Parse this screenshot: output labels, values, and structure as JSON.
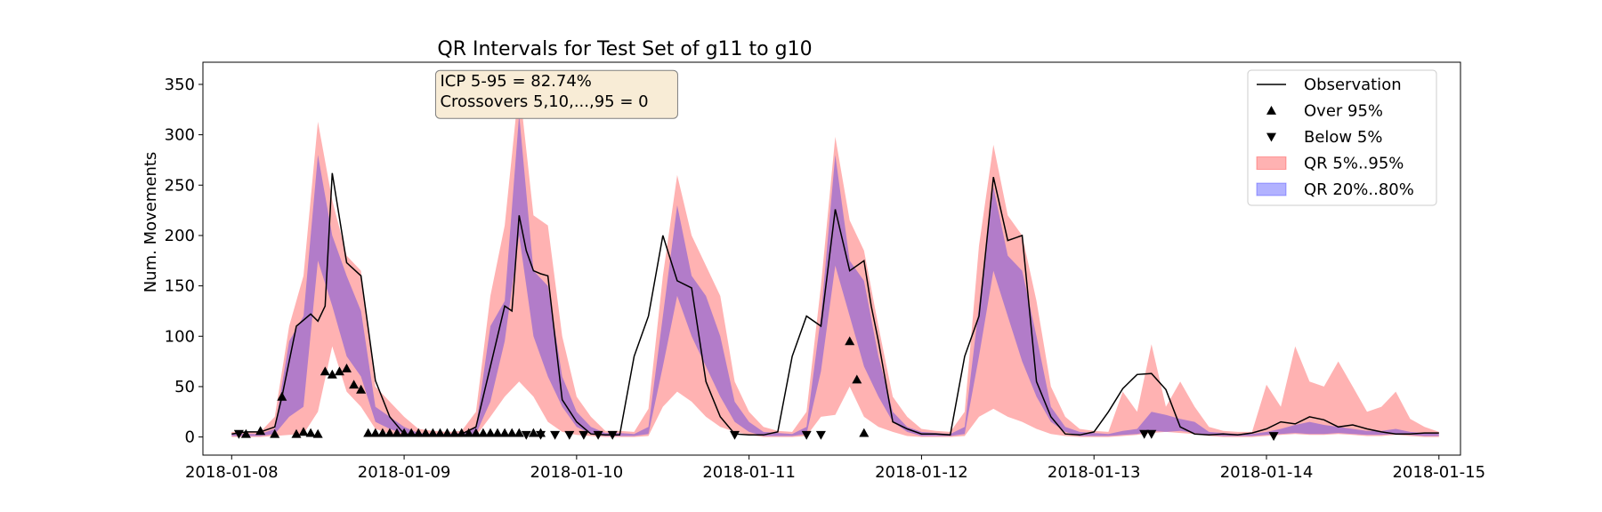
{
  "chart_data": {
    "type": "area",
    "title": "QR Intervals for Test Set of g11 to g10",
    "xlabel": "",
    "ylabel": "Num. Movements",
    "x_start": "2018-01-08",
    "x_end": "2018-01-15",
    "xlim": [
      "2018-01-07T20:00",
      "2018-01-15T03:00"
    ],
    "ylim": [
      -18,
      372
    ],
    "xticks": [
      "2018-01-08",
      "2018-01-09",
      "2018-01-10",
      "2018-01-11",
      "2018-01-12",
      "2018-01-13",
      "2018-01-14",
      "2018-01-15"
    ],
    "yticks": [
      0,
      50,
      100,
      150,
      200,
      250,
      300,
      350
    ],
    "grid": false,
    "legend_position": "top-right",
    "legend": [
      {
        "label": "Observation",
        "kind": "line",
        "color": "#000000"
      },
      {
        "label": "Over 95%",
        "kind": "marker-up",
        "color": "#000000"
      },
      {
        "label": "Below 5%",
        "kind": "marker-down",
        "color": "#000000"
      },
      {
        "label": "QR 5%..95%",
        "kind": "patch",
        "color": "#ff0000",
        "alpha": 0.3
      },
      {
        "label": "QR 20%..80%",
        "kind": "patch",
        "color": "#0000ff",
        "alpha": 0.3
      }
    ],
    "annotation": {
      "lines": [
        "ICP 5-95 = 82.74%",
        "Crossovers 5,10,...,95 = 0"
      ],
      "x_hours": 29,
      "y": 348,
      "face_color": "#f8ecd6",
      "edge_color": "#7f7f7f"
    },
    "series": {
      "band_5_95": {
        "x_hours": [
          0,
          4,
          6,
          8,
          10,
          12,
          14,
          16,
          18,
          20,
          22,
          24,
          26,
          28,
          30,
          32,
          34,
          36,
          38,
          40,
          42,
          44,
          46,
          48,
          50,
          52,
          54,
          56,
          58,
          60,
          62,
          64,
          66,
          68,
          70,
          72,
          74,
          76,
          78,
          80,
          82,
          84,
          86,
          88,
          90,
          92,
          94,
          96,
          98,
          100,
          102,
          104,
          106,
          108,
          110,
          112,
          114,
          116,
          118,
          120,
          122,
          124,
          126,
          128,
          130,
          132,
          134,
          136,
          138,
          140,
          142,
          144,
          146,
          148,
          150,
          152,
          154,
          156,
          158,
          160,
          162,
          164,
          166,
          168
        ],
        "upper": [
          5,
          5,
          20,
          110,
          160,
          313,
          235,
          180,
          165,
          50,
          35,
          20,
          8,
          6,
          5,
          6,
          25,
          140,
          210,
          350,
          220,
          210,
          100,
          40,
          20,
          6,
          6,
          5,
          28,
          160,
          260,
          200,
          170,
          140,
          55,
          25,
          10,
          6,
          5,
          25,
          150,
          298,
          215,
          185,
          110,
          40,
          20,
          8,
          6,
          5,
          25,
          190,
          290,
          220,
          200,
          135,
          50,
          20,
          8,
          6,
          5,
          45,
          25,
          92,
          30,
          55,
          30,
          10,
          6,
          5,
          5,
          52,
          30,
          90,
          55,
          50,
          75,
          50,
          25,
          30,
          45,
          18,
          10,
          5
        ],
        "lower": [
          0,
          0,
          1,
          2,
          3,
          25,
          90,
          45,
          30,
          8,
          3,
          1,
          0,
          0,
          0,
          0,
          1,
          20,
          40,
          55,
          40,
          15,
          5,
          2,
          1,
          0,
          0,
          0,
          1,
          30,
          45,
          35,
          20,
          10,
          5,
          2,
          0,
          0,
          0,
          1,
          20,
          22,
          50,
          20,
          10,
          5,
          1,
          0,
          0,
          0,
          1,
          20,
          28,
          20,
          15,
          8,
          3,
          1,
          0,
          0,
          0,
          1,
          2,
          4,
          5,
          4,
          3,
          1,
          0,
          0,
          0,
          1,
          2,
          3,
          2,
          2,
          3,
          2,
          1,
          1,
          2,
          1,
          0,
          0
        ]
      },
      "band_20_80": {
        "x_hours": [
          0,
          4,
          6,
          8,
          10,
          12,
          14,
          16,
          18,
          20,
          22,
          24,
          26,
          28,
          30,
          32,
          34,
          36,
          38,
          40,
          42,
          44,
          46,
          48,
          50,
          52,
          54,
          56,
          58,
          60,
          62,
          64,
          66,
          68,
          70,
          72,
          74,
          76,
          78,
          80,
          82,
          84,
          86,
          88,
          90,
          92,
          94,
          96,
          98,
          100,
          102,
          104,
          106,
          108,
          110,
          112,
          114,
          116,
          118,
          120,
          122,
          124,
          126,
          128,
          130,
          132,
          134,
          136,
          138,
          140,
          142,
          144,
          146,
          148,
          150,
          152,
          154,
          156,
          158,
          160,
          162,
          164,
          166,
          168
        ],
        "upper": [
          3,
          3,
          8,
          95,
          120,
          280,
          200,
          160,
          125,
          30,
          20,
          10,
          4,
          3,
          3,
          4,
          10,
          110,
          135,
          320,
          165,
          150,
          60,
          25,
          10,
          4,
          4,
          3,
          10,
          120,
          230,
          160,
          140,
          100,
          35,
          15,
          5,
          4,
          3,
          10,
          120,
          280,
          175,
          155,
          80,
          25,
          10,
          5,
          4,
          3,
          10,
          130,
          248,
          180,
          165,
          100,
          30,
          10,
          5,
          4,
          3,
          6,
          8,
          25,
          22,
          18,
          15,
          5,
          4,
          3,
          3,
          5,
          8,
          12,
          15,
          12,
          10,
          8,
          6,
          6,
          8,
          5,
          4,
          3
        ],
        "lower": [
          1,
          1,
          3,
          20,
          30,
          175,
          130,
          80,
          60,
          15,
          8,
          3,
          1,
          1,
          1,
          1,
          3,
          35,
          95,
          200,
          100,
          60,
          30,
          10,
          3,
          1,
          1,
          1,
          3,
          70,
          140,
          100,
          70,
          40,
          15,
          5,
          1,
          1,
          1,
          3,
          65,
          170,
          120,
          70,
          40,
          15,
          5,
          1,
          1,
          1,
          3,
          80,
          165,
          120,
          75,
          40,
          15,
          5,
          1,
          1,
          1,
          2,
          3,
          6,
          5,
          6,
          4,
          2,
          1,
          1,
          1,
          2,
          3,
          4,
          3,
          3,
          4,
          3,
          2,
          2,
          3,
          2,
          1,
          1
        ]
      },
      "observation": {
        "x_hours": [
          0,
          2,
          4,
          6,
          7,
          9,
          11,
          12,
          13,
          14,
          16,
          18,
          20,
          22,
          24,
          26,
          28,
          30,
          32,
          34,
          36,
          38,
          39,
          40,
          41,
          42,
          43,
          44,
          46,
          48,
          50,
          52,
          54,
          56,
          58,
          60,
          62,
          64,
          66,
          68,
          70,
          72,
          74,
          76,
          78,
          80,
          82,
          84,
          86,
          88,
          89,
          90,
          92,
          94,
          96,
          98,
          100,
          102,
          104,
          106,
          108,
          110,
          112,
          114,
          116,
          118,
          120,
          122,
          124,
          126,
          128,
          130,
          132,
          134,
          136,
          138,
          140,
          142,
          144,
          146,
          148,
          150,
          152,
          154,
          156,
          158,
          160,
          162,
          164,
          166,
          168
        ],
        "y": [
          3,
          5,
          5,
          10,
          40,
          110,
          122,
          115,
          130,
          262,
          173,
          160,
          56,
          20,
          3,
          2,
          2,
          1,
          3,
          10,
          70,
          130,
          125,
          220,
          185,
          165,
          162,
          160,
          37,
          15,
          3,
          2,
          2,
          80,
          120,
          200,
          155,
          148,
          55,
          20,
          3,
          2,
          2,
          5,
          80,
          120,
          110,
          226,
          165,
          175,
          130,
          95,
          15,
          8,
          3,
          3,
          2,
          80,
          120,
          258,
          195,
          200,
          55,
          20,
          3,
          2,
          5,
          25,
          48,
          62,
          63,
          47,
          10,
          3,
          2,
          3,
          2,
          4,
          8,
          15,
          13,
          20,
          17,
          10,
          12,
          8,
          5,
          3,
          3,
          4,
          4
        ],
        "color": "#000000"
      },
      "over_95_markers": {
        "x_hours": [
          2,
          4,
          6,
          7,
          9,
          10,
          11,
          12,
          13,
          14,
          15,
          16,
          17,
          18,
          19,
          20,
          21,
          22,
          23,
          24,
          25,
          26,
          27,
          28,
          29,
          30,
          31,
          32,
          33,
          34,
          35,
          36,
          37,
          38,
          39,
          40,
          42,
          43,
          86,
          87,
          88
        ],
        "y": [
          3,
          6,
          3,
          40,
          3,
          5,
          4,
          3,
          65,
          62,
          65,
          68,
          52,
          47,
          4,
          4,
          4,
          4,
          4,
          4,
          4,
          4,
          4,
          4,
          4,
          4,
          4,
          4,
          4,
          4,
          4,
          4,
          4,
          4,
          4,
          4,
          4,
          4,
          95,
          57,
          4
        ],
        "color": "#000000"
      },
      "below_5_markers": {
        "x_hours": [
          1,
          41,
          43,
          45,
          47,
          49,
          51,
          53,
          70,
          80,
          82,
          127,
          128,
          145
        ],
        "y": [
          3,
          2,
          2,
          2,
          2,
          2,
          2,
          2,
          2,
          2,
          2,
          3,
          3,
          1
        ],
        "color": "#000000"
      }
    }
  }
}
